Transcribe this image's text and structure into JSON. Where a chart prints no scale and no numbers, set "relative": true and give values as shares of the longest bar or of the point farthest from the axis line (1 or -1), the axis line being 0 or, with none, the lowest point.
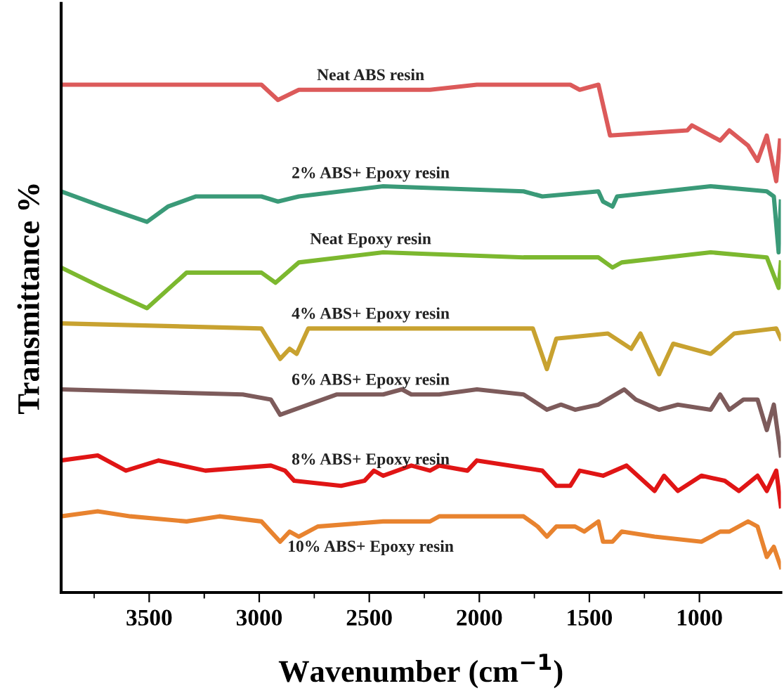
{
  "chart_data": {
    "type": "line",
    "relative": true,
    "xlabel": "Wavenumber (cm$^{−1}$)",
    "ylabel": "Transmittance %",
    "xlim": [
      3900,
      630
    ],
    "xticks": [
      3500,
      3000,
      2500,
      2000,
      1500,
      1000
    ],
    "grid": false,
    "legend": false,
    "line_style": "solid",
    "marker": "none",
    "series": [
      {
        "name": "Neat ABS resin",
        "color": "#dc5a5a",
        "x": [
          3900,
          3202,
          2990,
          2915,
          2820,
          2437,
          2224,
          2011,
          1799,
          1587,
          1544,
          1459,
          1406,
          1055,
          1034,
          906,
          864,
          779,
          736,
          694,
          651,
          634
        ],
        "values": [
          1.0,
          1.0,
          1.0,
          0.97,
          0.99,
          0.99,
          0.99,
          1.0,
          1.0,
          1.0,
          0.99,
          1.0,
          0.9,
          0.91,
          0.92,
          0.89,
          0.91,
          0.88,
          0.85,
          0.9,
          0.81,
          0.89
        ]
      },
      {
        "name": "2% ABS+ Epoxy resin",
        "color": "#3a9a78",
        "x": [
          3900,
          3712,
          3510,
          3415,
          3287,
          2990,
          2915,
          2820,
          2437,
          1799,
          1714,
          1459,
          1438,
          1395,
          1374,
          949,
          694,
          662,
          640,
          630
        ],
        "values": [
          0.79,
          0.76,
          0.73,
          0.76,
          0.78,
          0.78,
          0.77,
          0.78,
          0.8,
          0.79,
          0.78,
          0.79,
          0.77,
          0.76,
          0.78,
          0.8,
          0.79,
          0.78,
          0.67,
          0.77
        ]
      },
      {
        "name": "Neat Epoxy resin",
        "color": "#7cb82f",
        "x": [
          3900,
          3712,
          3510,
          3330,
          2990,
          2926,
          2820,
          2437,
          1799,
          1459,
          1395,
          1353,
          949,
          694,
          640,
          630
        ],
        "values": [
          0.64,
          0.6,
          0.56,
          0.63,
          0.63,
          0.61,
          0.65,
          0.67,
          0.66,
          0.66,
          0.64,
          0.65,
          0.67,
          0.66,
          0.6,
          0.65
        ]
      },
      {
        "name": "4% ABS+ Epoxy resin",
        "color": "#c8a230",
        "x": [
          3900,
          2990,
          2905,
          2862,
          2830,
          2777,
          1757,
          1693,
          1650,
          1416,
          1310,
          1268,
          1183,
          1119,
          949,
          842,
          651,
          630
        ],
        "values": [
          0.53,
          0.52,
          0.46,
          0.48,
          0.47,
          0.52,
          0.52,
          0.44,
          0.5,
          0.51,
          0.48,
          0.51,
          0.43,
          0.49,
          0.47,
          0.51,
          0.52,
          0.5
        ]
      },
      {
        "name": "6% ABS+ Epoxy resin",
        "color": "#7d5b5b",
        "x": [
          3900,
          3075,
          2947,
          2905,
          2841,
          2649,
          2437,
          2352,
          2309,
          2182,
          2011,
          1799,
          1693,
          1629,
          1565,
          1459,
          1342,
          1289,
          1183,
          1098,
          949,
          906,
          864,
          800,
          736,
          694,
          662,
          630
        ],
        "values": [
          0.4,
          0.39,
          0.38,
          0.35,
          0.36,
          0.39,
          0.39,
          0.4,
          0.39,
          0.39,
          0.4,
          0.39,
          0.36,
          0.37,
          0.36,
          0.37,
          0.4,
          0.38,
          0.36,
          0.37,
          0.36,
          0.39,
          0.36,
          0.38,
          0.38,
          0.32,
          0.37,
          0.27
        ]
      },
      {
        "name": "8% ABS+ Epoxy resin",
        "color": "#e01515",
        "x": [
          3900,
          3734,
          3606,
          3457,
          3245,
          2947,
          2883,
          2841,
          2628,
          2522,
          2479,
          2437,
          2309,
          2224,
          2182,
          2054,
          2011,
          1714,
          1650,
          1587,
          1544,
          1438,
          1331,
          1204,
          1161,
          1098,
          991,
          885,
          821,
          736,
          694,
          651,
          630
        ],
        "values": [
          0.26,
          0.27,
          0.24,
          0.26,
          0.24,
          0.25,
          0.24,
          0.22,
          0.21,
          0.22,
          0.24,
          0.23,
          0.25,
          0.24,
          0.25,
          0.24,
          0.26,
          0.24,
          0.21,
          0.21,
          0.24,
          0.23,
          0.25,
          0.2,
          0.23,
          0.2,
          0.23,
          0.22,
          0.2,
          0.23,
          0.2,
          0.24,
          0.17
        ]
      },
      {
        "name": "10% ABS+ Epoxy resin",
        "color": "#e8832f",
        "x": [
          3900,
          3734,
          3585,
          3330,
          3181,
          2990,
          2905,
          2862,
          2820,
          2734,
          2437,
          2224,
          2182,
          1799,
          1735,
          1693,
          1650,
          1565,
          1523,
          1459,
          1438,
          1395,
          1353,
          1204,
          991,
          906,
          864,
          779,
          736,
          694,
          662,
          630
        ],
        "values": [
          0.15,
          0.16,
          0.15,
          0.14,
          0.15,
          0.14,
          0.1,
          0.12,
          0.11,
          0.13,
          0.14,
          0.14,
          0.15,
          0.15,
          0.13,
          0.11,
          0.13,
          0.13,
          0.12,
          0.14,
          0.1,
          0.1,
          0.12,
          0.11,
          0.1,
          0.12,
          0.12,
          0.14,
          0.13,
          0.07,
          0.09,
          0.05
        ]
      }
    ]
  }
}
